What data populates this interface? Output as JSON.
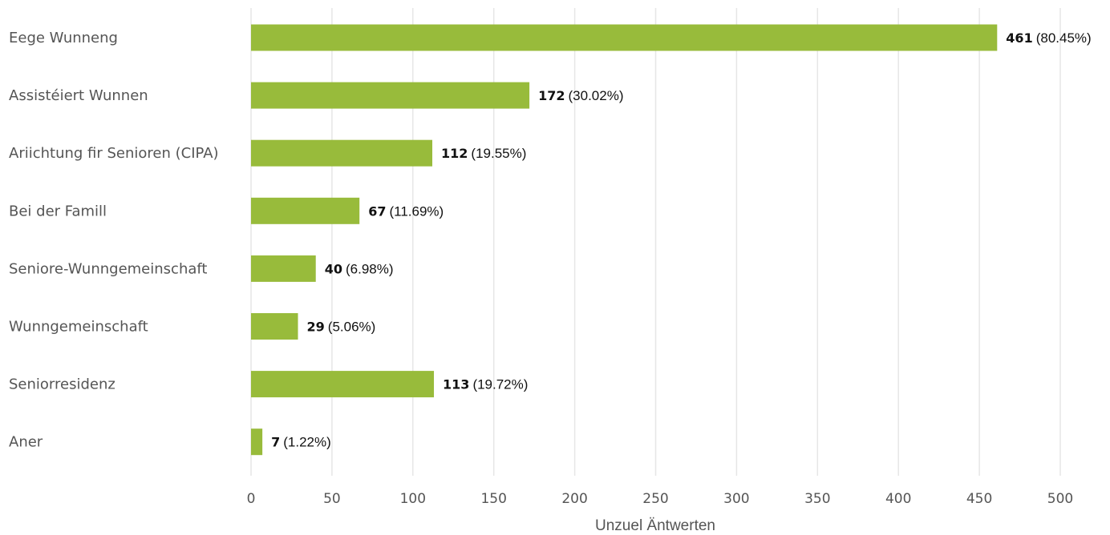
{
  "chart_data": {
    "type": "bar",
    "orientation": "horizontal",
    "categories": [
      "Eege Wunneng",
      "Assistéiert Wunnen",
      "Ariichtung fir Senioren (CIPA)",
      "Bei der Famill",
      "Seniore-Wunngemeinschaft",
      "Wunngemeinschaft",
      "Seniorresidenz",
      "Aner"
    ],
    "values": [
      461,
      172,
      112,
      67,
      40,
      29,
      113,
      7
    ],
    "percent_labels": [
      "(80.45%)",
      "(30.02%)",
      "(19.55%)",
      "(11.69%)",
      "(6.98%)",
      "(5.06%)",
      "(19.72%)",
      "(1.22%)"
    ],
    "xlabel": "Unzuel Äntwerten",
    "ylabel": "",
    "xlim": [
      0,
      500
    ],
    "xticks": [
      0,
      50,
      100,
      150,
      200,
      250,
      300,
      350,
      400,
      450,
      500
    ],
    "grid": true,
    "bar_color": "#98bb3b",
    "grid_color": "#e6e6e6"
  }
}
